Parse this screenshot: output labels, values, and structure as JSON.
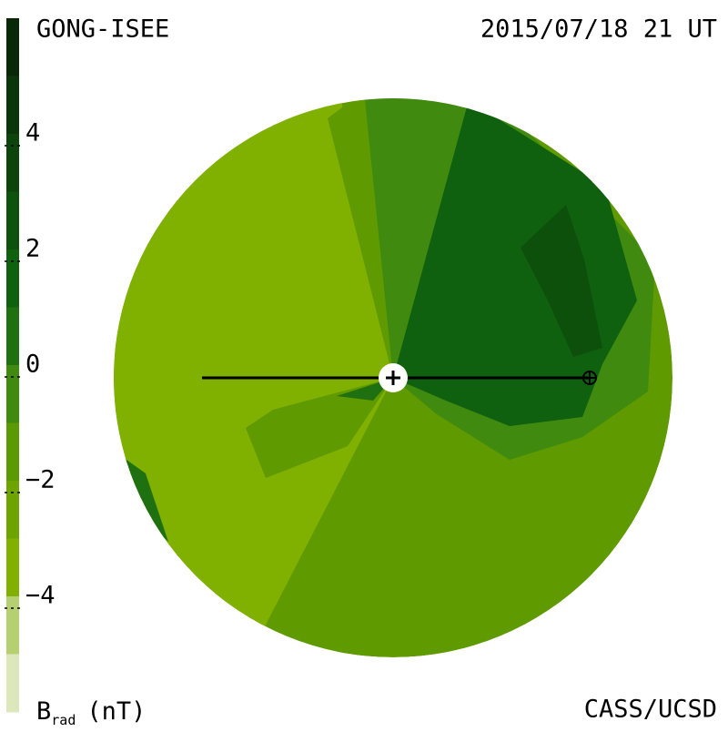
{
  "chart_data": {
    "type": "heatmap",
    "title": "GONG-ISEE",
    "subtitle": "2015/07/18 21 UT",
    "credit": "CASS/UCSD",
    "colorbar_label": {
      "text": "B",
      "subscript": "rad",
      "unit": "(nT)"
    },
    "colorbar": {
      "lim": [
        -6,
        6
      ],
      "ticks": [
        4,
        2,
        0,
        {
          "value": -2,
          "label": "−2"
        },
        {
          "value": -4,
          "label": "−4"
        }
      ],
      "colors": [
        "#082808",
        "#0b360b",
        "#0c440c",
        "#0d520d",
        "#0f600f",
        "#1f7010",
        "#3f8a0f",
        "#5c9a05",
        "#6ea300",
        "#82b000",
        "#b4d070",
        "#dce8bc"
      ]
    }
  }
}
